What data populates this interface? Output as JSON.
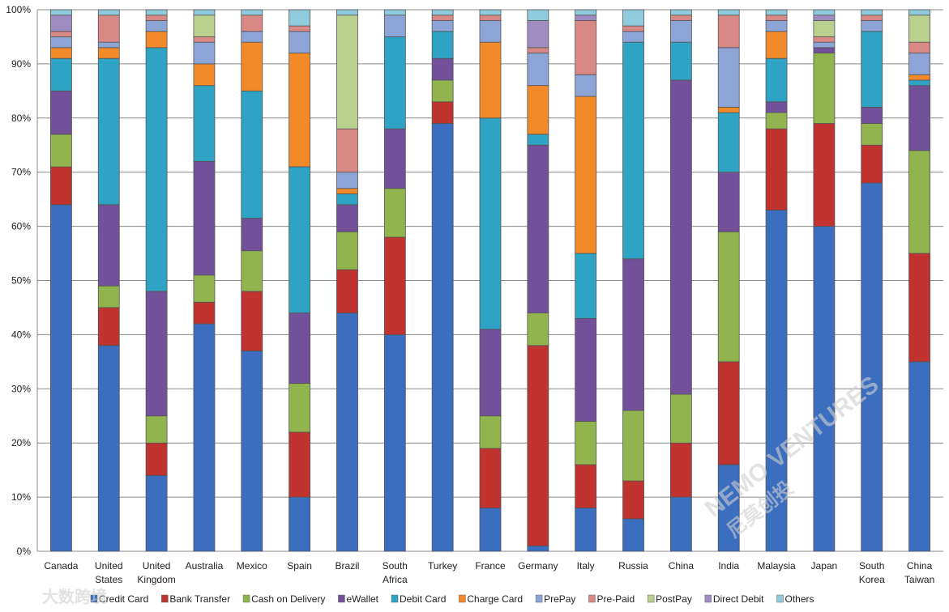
{
  "chart_data": {
    "type": "bar",
    "stacked": "percent",
    "title": "",
    "xlabel": "",
    "ylabel": "",
    "ylim": [
      0,
      100
    ],
    "yticks": [
      "0%",
      "10%",
      "20%",
      "30%",
      "40%",
      "50%",
      "60%",
      "70%",
      "80%",
      "90%",
      "100%"
    ],
    "grid": true,
    "legend_position": "bottom",
    "categories": [
      [
        "Canada"
      ],
      [
        "United",
        "States"
      ],
      [
        "United",
        "Kingdom"
      ],
      [
        "Australia"
      ],
      [
        "Mexico"
      ],
      [
        "Spain"
      ],
      [
        "Brazil"
      ],
      [
        "South",
        "Africa"
      ],
      [
        "Turkey"
      ],
      [
        "France"
      ],
      [
        "Germany"
      ],
      [
        "Italy"
      ],
      [
        "Russia"
      ],
      [
        "China"
      ],
      [
        "India"
      ],
      [
        "Malaysia"
      ],
      [
        "Japan"
      ],
      [
        "South",
        "Korea"
      ],
      [
        "China",
        "Taiwan"
      ]
    ],
    "series": [
      {
        "name": "Credit Card",
        "color": "#3C6EC0",
        "values": [
          64,
          38,
          14,
          42,
          37,
          10,
          44,
          40,
          79,
          8,
          1,
          8,
          6,
          10,
          16,
          63,
          60,
          68,
          35
        ]
      },
      {
        "name": "Bank Transfer",
        "color": "#C0332E",
        "values": [
          7,
          7,
          6,
          4,
          11,
          12,
          8,
          18,
          4,
          11,
          37,
          8,
          7,
          10,
          19,
          15,
          19,
          7,
          20
        ]
      },
      {
        "name": "Cash on Delivery",
        "color": "#92B44E",
        "values": [
          6,
          4,
          5,
          5,
          7.5,
          9,
          7,
          9,
          4,
          6,
          6,
          8,
          13,
          9,
          24,
          3,
          13,
          4,
          19
        ]
      },
      {
        "name": "eWallet",
        "color": "#72519A",
        "values": [
          8,
          15,
          23,
          21,
          6,
          13,
          5,
          11,
          4,
          16,
          31,
          19,
          28,
          58,
          11,
          2,
          1,
          3,
          12
        ]
      },
      {
        "name": "Debit Card",
        "color": "#2FA3C3",
        "values": [
          6,
          27,
          45,
          14,
          23.5,
          27,
          2,
          17,
          5,
          39,
          2,
          12,
          40,
          7,
          11,
          8,
          0,
          14,
          1
        ]
      },
      {
        "name": "Charge Card",
        "color": "#F28A2A",
        "values": [
          2,
          2,
          3,
          4,
          9,
          21,
          1,
          0,
          0,
          14,
          9,
          29,
          0,
          0,
          1,
          5,
          0,
          0,
          1
        ]
      },
      {
        "name": "PrePay",
        "color": "#8CA4D6",
        "values": [
          2,
          1,
          2,
          4,
          2,
          4,
          3,
          4,
          2,
          4,
          6,
          4,
          2,
          4,
          11,
          2,
          1,
          2,
          4
        ]
      },
      {
        "name": "Pre-Paid",
        "color": "#D98886",
        "values": [
          1,
          5,
          1,
          1,
          3,
          1,
          8,
          0,
          1,
          1,
          1,
          10,
          1,
          1,
          6,
          1,
          1,
          1,
          2
        ]
      },
      {
        "name": "PostPay",
        "color": "#BAD08E",
        "values": [
          0,
          0,
          0,
          4,
          0,
          0,
          21,
          0,
          0,
          0,
          0,
          0,
          0,
          0,
          0,
          0,
          3,
          0,
          5
        ]
      },
      {
        "name": "Direct Debit",
        "color": "#9F8CC0",
        "values": [
          3,
          0,
          0,
          0,
          0,
          0,
          0,
          0,
          0,
          0,
          5,
          1,
          0,
          0,
          0,
          0,
          1,
          0,
          0
        ]
      },
      {
        "name": "Others",
        "color": "#8FCBDC",
        "values": [
          1,
          1,
          1,
          1,
          1,
          3,
          1,
          1,
          1,
          1,
          2,
          1,
          3,
          1,
          1,
          1,
          1,
          1,
          1
        ]
      }
    ]
  },
  "watermarks": [
    "NEMO VENTURES",
    "尼莫创投",
    "大数跨境"
  ]
}
